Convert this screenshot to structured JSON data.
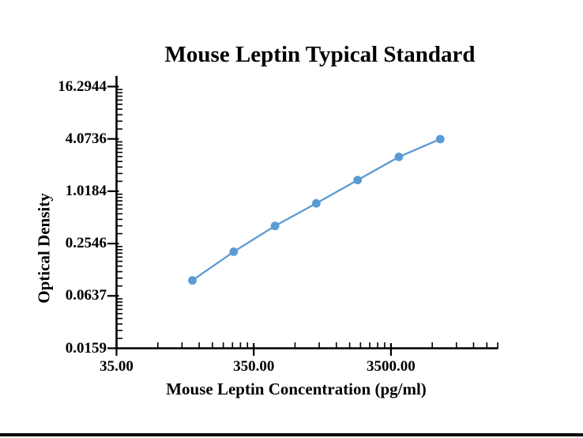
{
  "chart_data": {
    "type": "line",
    "title": "Mouse Leptin Typical Standard",
    "xlabel": "Mouse Leptin Concentration (pg/ml)",
    "ylabel": "Optical Density",
    "x_scale": "log",
    "y_scale": "log",
    "grid": false,
    "legend_position": "none",
    "axis_color": "#000000",
    "x_ticks": [
      {
        "value": 35,
        "label": "35.00"
      },
      {
        "value": 350,
        "label": "350.00"
      },
      {
        "value": 3500,
        "label": "3500.00"
      }
    ],
    "y_ticks": [
      {
        "value": 0.0159,
        "label": "0.0159"
      },
      {
        "value": 0.0637,
        "label": "0.0637"
      },
      {
        "value": 0.2546,
        "label": "0.2546"
      },
      {
        "value": 1.0184,
        "label": "1.0184"
      },
      {
        "value": 4.0736,
        "label": "4.0736"
      },
      {
        "value": 16.2944,
        "label": "16.2944"
      }
    ],
    "series": [
      {
        "name": "Mouse Leptin Typical Standard",
        "color": "#5B9BD5",
        "marker": "circle",
        "points": [
          {
            "x": 125,
            "y": 0.096
          },
          {
            "x": 250,
            "y": 0.205
          },
          {
            "x": 500,
            "y": 0.406
          },
          {
            "x": 1000,
            "y": 0.74
          },
          {
            "x": 2000,
            "y": 1.37
          },
          {
            "x": 4000,
            "y": 2.53
          },
          {
            "x": 8000,
            "y": 4.05
          }
        ]
      }
    ]
  }
}
